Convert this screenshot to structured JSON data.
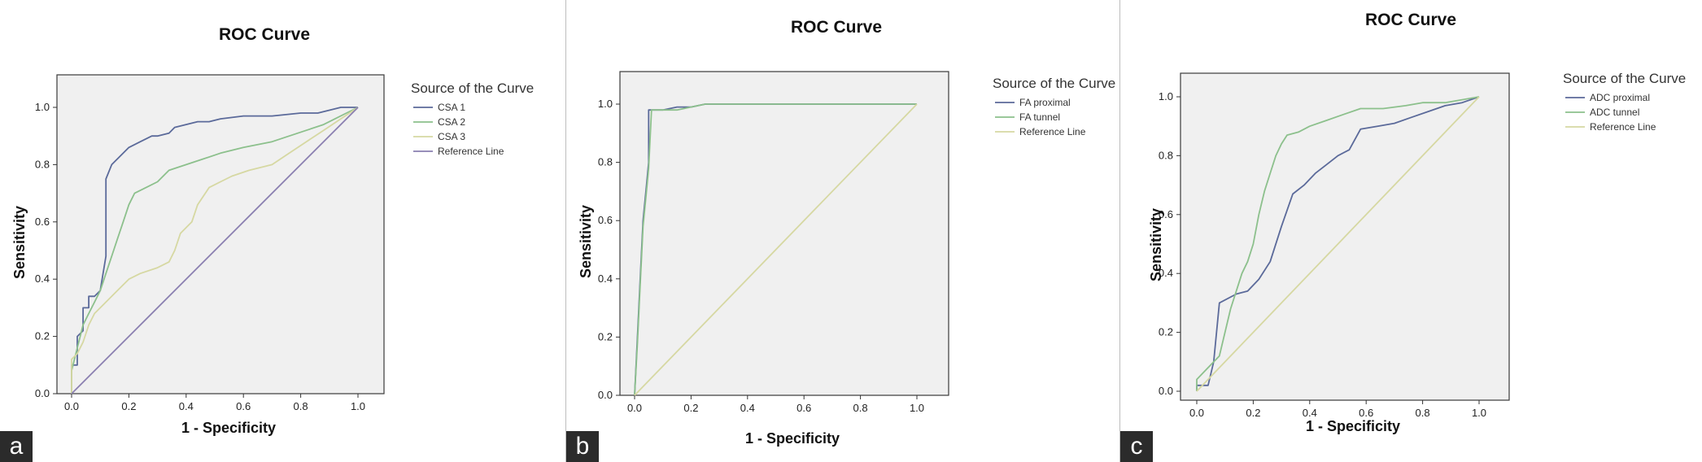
{
  "chart_data": [
    {
      "type": "line",
      "panel_label": "a",
      "title": "ROC Curve",
      "xlabel": "1 - Specificity",
      "ylabel": "Sensitivity",
      "xlim": [
        0,
        1
      ],
      "ylim": [
        0,
        1
      ],
      "xticks": [
        "0.0",
        "0.2",
        "0.4",
        "0.6",
        "0.8",
        "1.0"
      ],
      "yticks": [
        "0.0",
        "0.2",
        "0.4",
        "0.6",
        "0.8",
        "1.0"
      ],
      "legend_title": "Source of the Curve",
      "legend_position": "right",
      "grid": false,
      "series": [
        {
          "name": "CSA 1",
          "color": "#5b6a9a",
          "x": [
            0,
            0,
            0.02,
            0.02,
            0.04,
            0.04,
            0.06,
            0.06,
            0.08,
            0.1,
            0.12,
            0.12,
            0.14,
            0.16,
            0.2,
            0.24,
            0.28,
            0.3,
            0.34,
            0.36,
            0.4,
            0.44,
            0.48,
            0.52,
            0.6,
            0.7,
            0.8,
            0.86,
            0.9,
            0.94,
            1.0
          ],
          "y": [
            0,
            0.1,
            0.1,
            0.2,
            0.22,
            0.3,
            0.3,
            0.34,
            0.34,
            0.36,
            0.48,
            0.75,
            0.8,
            0.82,
            0.86,
            0.88,
            0.9,
            0.9,
            0.91,
            0.93,
            0.94,
            0.95,
            0.95,
            0.96,
            0.97,
            0.97,
            0.98,
            0.98,
            0.99,
            1.0,
            1.0
          ]
        },
        {
          "name": "CSA 2",
          "color": "#8cc08c",
          "x": [
            0,
            0,
            0.02,
            0.04,
            0.06,
            0.08,
            0.1,
            0.12,
            0.14,
            0.16,
            0.18,
            0.2,
            0.22,
            0.26,
            0.3,
            0.34,
            0.4,
            0.46,
            0.52,
            0.6,
            0.7,
            0.76,
            0.82,
            0.88,
            0.92,
            0.96,
            1.0
          ],
          "y": [
            0,
            0.08,
            0.16,
            0.24,
            0.28,
            0.32,
            0.36,
            0.42,
            0.48,
            0.54,
            0.6,
            0.66,
            0.7,
            0.72,
            0.74,
            0.78,
            0.8,
            0.82,
            0.84,
            0.86,
            0.88,
            0.9,
            0.92,
            0.94,
            0.96,
            0.98,
            1.0
          ]
        },
        {
          "name": "CSA 3",
          "color": "#d6d8a2",
          "x": [
            0,
            0,
            0.02,
            0.04,
            0.06,
            0.08,
            0.12,
            0.16,
            0.2,
            0.24,
            0.3,
            0.34,
            0.36,
            0.38,
            0.42,
            0.44,
            0.48,
            0.52,
            0.56,
            0.62,
            0.7,
            0.76,
            0.82,
            0.88,
            0.94,
            1.0
          ],
          "y": [
            0,
            0.12,
            0.14,
            0.18,
            0.24,
            0.28,
            0.32,
            0.36,
            0.4,
            0.42,
            0.44,
            0.46,
            0.5,
            0.56,
            0.6,
            0.66,
            0.72,
            0.74,
            0.76,
            0.78,
            0.8,
            0.84,
            0.88,
            0.92,
            0.96,
            1.0
          ]
        },
        {
          "name": "Reference Line",
          "color": "#8a7fb0",
          "x": [
            0,
            1
          ],
          "y": [
            0,
            1
          ]
        }
      ]
    },
    {
      "type": "line",
      "panel_label": "b",
      "title": "ROC Curve",
      "xlabel": "1 - Specificity",
      "ylabel": "Sensitivity",
      "xlim": [
        0,
        1
      ],
      "ylim": [
        0,
        1
      ],
      "xticks": [
        "0.0",
        "0.2",
        "0.4",
        "0.6",
        "0.8",
        "1.0"
      ],
      "yticks": [
        "0.0",
        "0.2",
        "0.4",
        "0.6",
        "0.8",
        "1.0"
      ],
      "legend_title": "Source of the Curve",
      "legend_position": "right",
      "grid": false,
      "series": [
        {
          "name": "FA proximal",
          "color": "#5b6a9a",
          "x": [
            0,
            0.01,
            0.02,
            0.03,
            0.04,
            0.05,
            0.05,
            0.1,
            0.15,
            0.2,
            0.25,
            1.0
          ],
          "y": [
            0,
            0.2,
            0.4,
            0.6,
            0.7,
            0.8,
            0.98,
            0.98,
            0.99,
            0.99,
            1.0,
            1.0
          ]
        },
        {
          "name": "FA tunnel",
          "color": "#8cc08c",
          "x": [
            0,
            0.01,
            0.02,
            0.03,
            0.04,
            0.05,
            0.06,
            0.1,
            0.15,
            0.2,
            0.25,
            1.0
          ],
          "y": [
            0,
            0.18,
            0.38,
            0.58,
            0.68,
            0.78,
            0.98,
            0.98,
            0.98,
            0.99,
            1.0,
            1.0
          ]
        },
        {
          "name": "Reference Line",
          "color": "#d6d8a2",
          "x": [
            0,
            1
          ],
          "y": [
            0,
            1
          ]
        }
      ]
    },
    {
      "type": "line",
      "panel_label": "c",
      "title": "ROC Curve",
      "xlabel": "1 - Specificity",
      "ylabel": "Sensitivity",
      "xlim": [
        0,
        1
      ],
      "ylim": [
        0,
        1
      ],
      "xticks": [
        "0.0",
        "0.2",
        "0.4",
        "0.6",
        "0.8",
        "1.0"
      ],
      "yticks": [
        "0.0",
        "0.2",
        "0.4",
        "0.6",
        "0.8",
        "1.0"
      ],
      "legend_title": "Source of the Curve",
      "legend_position": "right",
      "grid": false,
      "series": [
        {
          "name": "ADC proximal",
          "color": "#5b6a9a",
          "x": [
            0,
            0,
            0.04,
            0.06,
            0.08,
            0.14,
            0.18,
            0.22,
            0.26,
            0.3,
            0.34,
            0.38,
            0.42,
            0.46,
            0.5,
            0.54,
            0.58,
            0.64,
            0.7,
            0.76,
            0.82,
            0.88,
            0.94,
            1.0
          ],
          "y": [
            0,
            0.02,
            0.02,
            0.1,
            0.3,
            0.33,
            0.34,
            0.38,
            0.44,
            0.56,
            0.67,
            0.7,
            0.74,
            0.77,
            0.8,
            0.82,
            0.89,
            0.9,
            0.91,
            0.93,
            0.95,
            0.97,
            0.98,
            1.0
          ]
        },
        {
          "name": "ADC tunnel",
          "color": "#8cc08c",
          "x": [
            0,
            0,
            0.04,
            0.08,
            0.12,
            0.16,
            0.18,
            0.2,
            0.22,
            0.24,
            0.26,
            0.28,
            0.3,
            0.32,
            0.36,
            0.4,
            0.46,
            0.52,
            0.58,
            0.66,
            0.74,
            0.8,
            0.88,
            0.94,
            1.0
          ],
          "y": [
            0,
            0.04,
            0.08,
            0.12,
            0.28,
            0.4,
            0.44,
            0.5,
            0.6,
            0.68,
            0.74,
            0.8,
            0.84,
            0.87,
            0.88,
            0.9,
            0.92,
            0.94,
            0.96,
            0.96,
            0.97,
            0.98,
            0.98,
            0.99,
            1.0
          ]
        },
        {
          "name": "Reference Line",
          "color": "#d6d8a2",
          "x": [
            0,
            1
          ],
          "y": [
            0,
            1
          ]
        }
      ]
    }
  ]
}
